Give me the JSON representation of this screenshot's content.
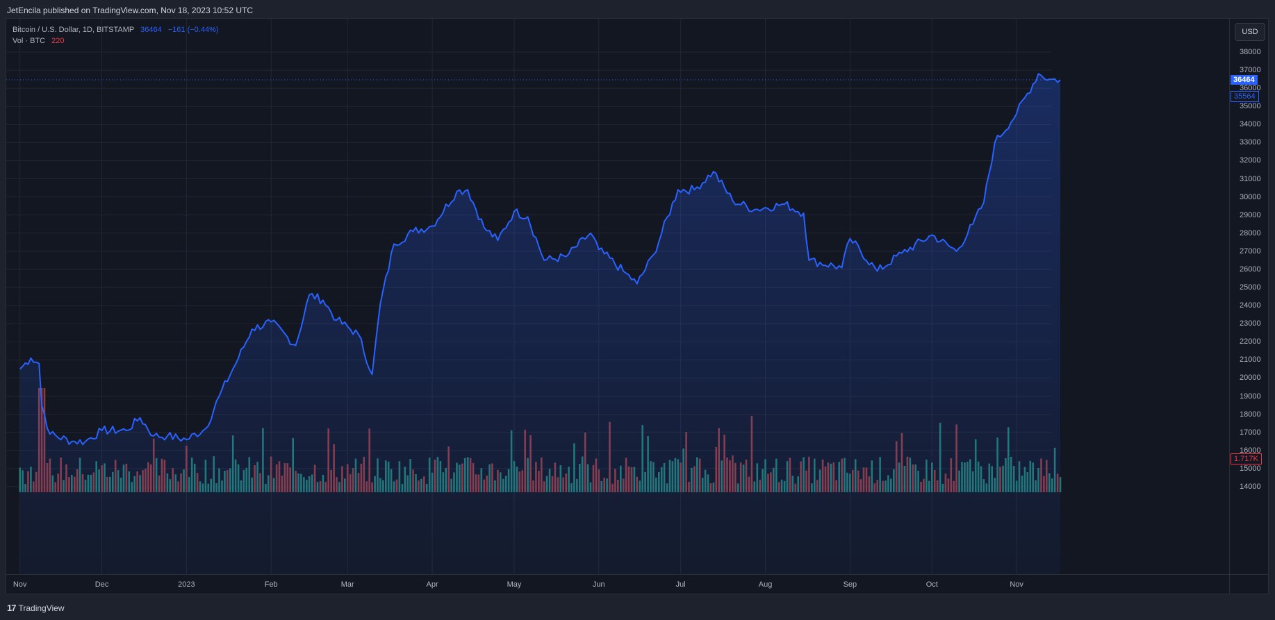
{
  "header": {
    "published": "JetEncila published on TradingView.com, Nov 18, 2023 10:52 UTC"
  },
  "legend": {
    "symbol": "Bitcoin / U.S. Dollar, 1D, BITSTAMP",
    "last_price": "36464",
    "change": "−161 (−0.44%)",
    "volume_label": "Vol · BTC",
    "volume_value": "220"
  },
  "price_axis": {
    "currency_button": "USD",
    "ticks": [
      "38000",
      "37000",
      "36000",
      "35000",
      "34000",
      "33000",
      "32000",
      "31000",
      "30000",
      "29000",
      "28000",
      "27000",
      "26000",
      "25000",
      "24000",
      "23000",
      "22000",
      "21000",
      "20000",
      "19000",
      "18000",
      "17000",
      "16000",
      "15000",
      "14000"
    ],
    "current_price_label": "36464",
    "prev_close_label": "35564",
    "volume_label": "1.717K"
  },
  "time_axis": {
    "labels": [
      "Nov",
      "Dec",
      "2023",
      "Feb",
      "Mar",
      "Apr",
      "May",
      "Jun",
      "Jul",
      "Aug",
      "Sep",
      "Oct",
      "Nov"
    ]
  },
  "footer": {
    "brand": "TradingView",
    "logo": "17"
  },
  "colors": {
    "background": "#131722",
    "line": "#2962ff",
    "up_volume": "#22786e",
    "down_volume": "#8e3a3f",
    "grid": "#232733",
    "text": "#b2b5be"
  },
  "chart_data": {
    "type": "area",
    "title": "Bitcoin / U.S. Dollar, 1D, BITSTAMP",
    "xlabel": "",
    "ylabel": "USD",
    "ylim": [
      13500,
      38500
    ],
    "grid": true,
    "x": [
      "2022-11-01",
      "2022-11-05",
      "2022-11-08",
      "2022-11-09",
      "2022-11-12",
      "2022-11-20",
      "2022-11-25",
      "2022-12-01",
      "2022-12-10",
      "2022-12-15",
      "2022-12-20",
      "2022-12-25",
      "2023-01-01",
      "2023-01-08",
      "2023-01-13",
      "2023-01-20",
      "2023-01-25",
      "2023-02-01",
      "2023-02-10",
      "2023-02-15",
      "2023-02-20",
      "2023-02-25",
      "2023-03-05",
      "2023-03-10",
      "2023-03-13",
      "2023-03-18",
      "2023-03-25",
      "2023-04-01",
      "2023-04-10",
      "2023-04-14",
      "2023-04-20",
      "2023-04-25",
      "2023-05-01",
      "2023-05-06",
      "2023-05-12",
      "2023-05-20",
      "2023-05-29",
      "2023-06-01",
      "2023-06-10",
      "2023-06-15",
      "2023-06-21",
      "2023-06-30",
      "2023-07-06",
      "2023-07-13",
      "2023-07-20",
      "2023-07-28",
      "2023-08-08",
      "2023-08-15",
      "2023-08-17",
      "2023-08-29",
      "2023-09-01",
      "2023-09-11",
      "2023-09-20",
      "2023-10-01",
      "2023-10-10",
      "2023-10-16",
      "2023-10-20",
      "2023-10-24",
      "2023-11-01",
      "2023-11-09",
      "2023-11-13",
      "2023-11-17"
    ],
    "values": [
      20500,
      21100,
      20800,
      18500,
      16900,
      16500,
      16500,
      17100,
      17100,
      17800,
      16800,
      16800,
      16600,
      17200,
      19000,
      21100,
      22700,
      23100,
      21800,
      24600,
      24300,
      23200,
      22400,
      20200,
      24100,
      27400,
      28100,
      28400,
      30300,
      30400,
      28300,
      27600,
      29200,
      28900,
      26500,
      26700,
      28000,
      27100,
      25900,
      25200,
      26800,
      30400,
      30400,
      31400,
      29800,
      29300,
      29600,
      29100,
      26500,
      26100,
      27700,
      25900,
      26900,
      27900,
      27000,
      28500,
      29700,
      33000,
      34600,
      36800,
      36500,
      36464
    ]
  }
}
